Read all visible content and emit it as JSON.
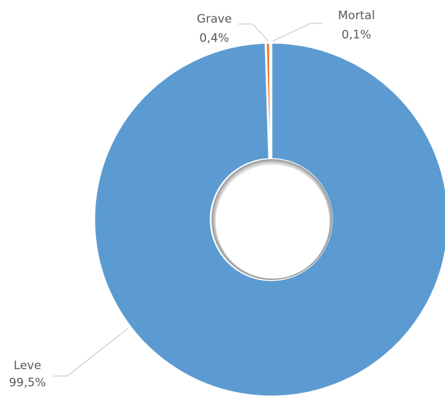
{
  "chart_data": {
    "type": "pie",
    "variant": "doughnut",
    "slices": [
      {
        "label": "Leve",
        "value": 99.5,
        "value_label": "99,5%",
        "color": "#5b9bd1"
      },
      {
        "label": "Grave",
        "value": 0.4,
        "value_label": "0,4%",
        "color": "#ed7d31"
      },
      {
        "label": "Mortal",
        "value": 0.1,
        "value_label": "0,1%",
        "color": "#a5a5a5"
      }
    ],
    "title": "",
    "legend": "none",
    "data_labels": "outside-with-leader-lines"
  }
}
